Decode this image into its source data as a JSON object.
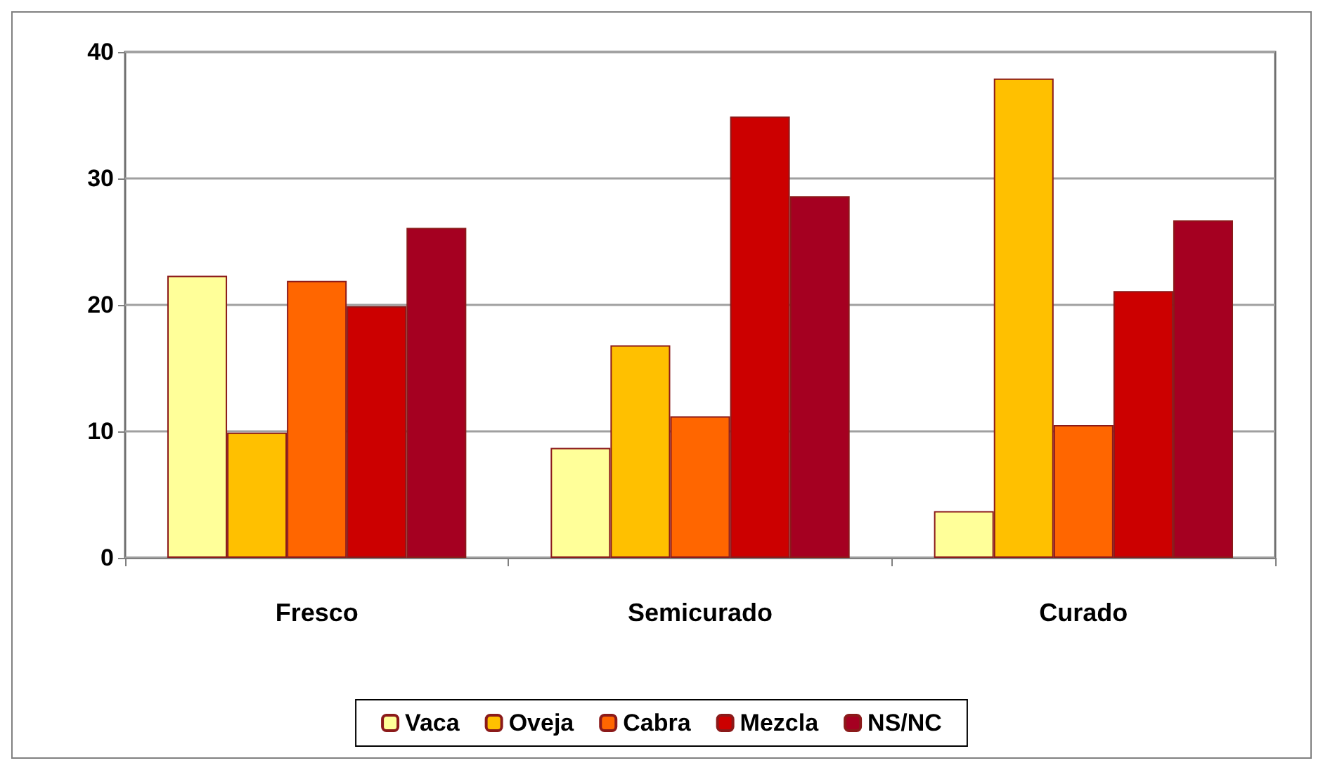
{
  "chart_data": {
    "type": "bar",
    "categories": [
      "Fresco",
      "Semicurado",
      "Curado"
    ],
    "series": [
      {
        "name": "Vaca",
        "color": "#ffff99",
        "values": [
          22.3,
          8.7,
          3.7
        ]
      },
      {
        "name": "Oveja",
        "color": "#ffc000",
        "values": [
          9.9,
          16.8,
          37.9
        ]
      },
      {
        "name": "Cabra",
        "color": "#ff6600",
        "values": [
          21.9,
          11.2,
          10.5
        ]
      },
      {
        "name": "Mezcla",
        "color": "#cc0000",
        "values": [
          19.9,
          34.9,
          21.1
        ]
      },
      {
        "name": "NS/NC",
        "color": "#a50021",
        "values": [
          26.1,
          28.6,
          26.7
        ]
      }
    ],
    "ylim": [
      0,
      40
    ],
    "yticks": [
      0,
      10,
      20,
      30,
      40
    ],
    "grid": "y",
    "legend": "bottom"
  }
}
